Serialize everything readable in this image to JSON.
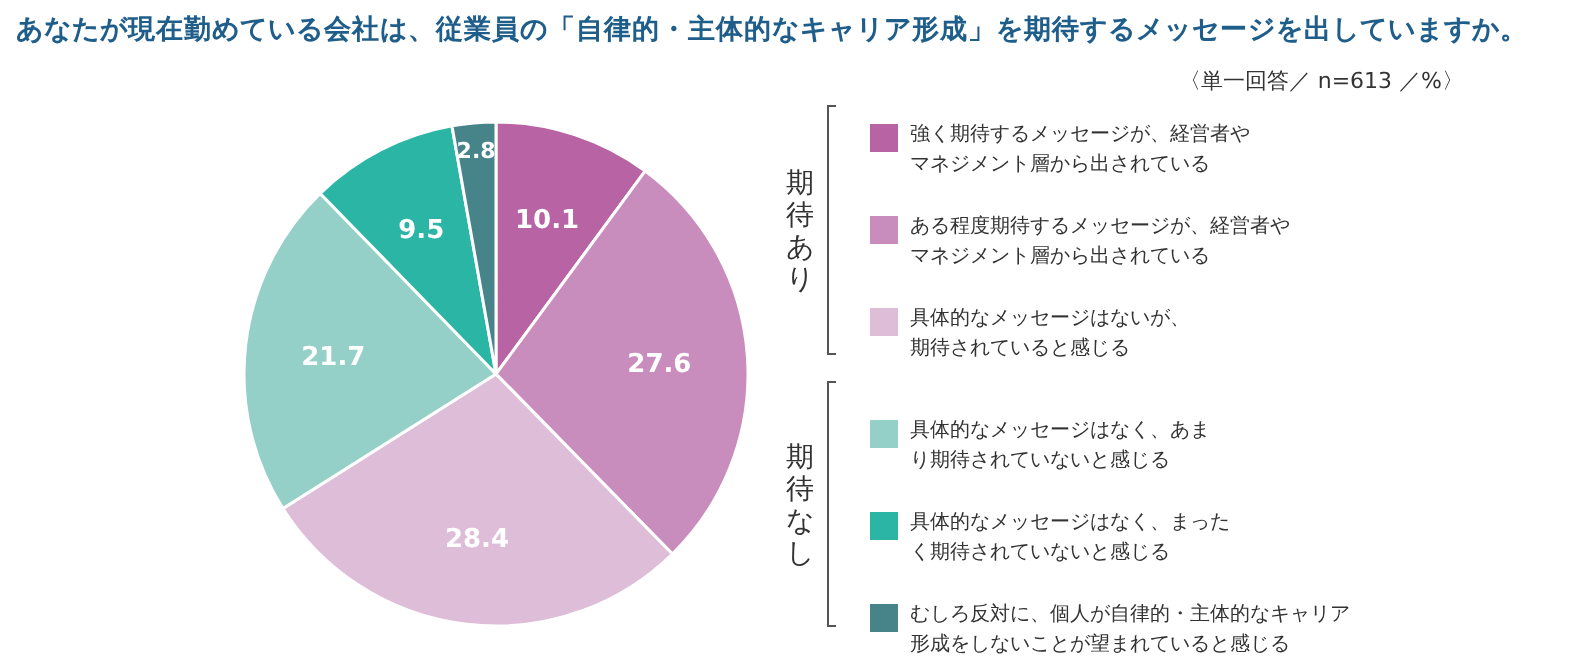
{
  "chart_data": {
    "type": "pie",
    "title": "あなたが現在勤めている会社は、従業員の「自律的・主体的なキャリア形成」を期待するメッセージを出していますか。",
    "subtitle": "〈単一回答／ n=613 ／%〉",
    "categories": [
      "強く期待するメッセージが、経営者やマネジメント層から出されている",
      "ある程度期待するメッセージが、経営者やマネジメント層から出されている",
      "具体的なメッセージはないが、期待されていると感じる",
      "具体的なメッセージはなく、あまり期待されていないと感じる",
      "具体的なメッセージはなく、まったく期待されていないと感じる",
      "むしろ反対に、個人が自律的・主体的なキャリア形成をしないことが望まれていると感じる"
    ],
    "values": [
      10.1,
      27.6,
      28.4,
      21.7,
      9.5,
      2.8
    ],
    "colors": [
      "#b863a3",
      "#c98dbd",
      "#ddbdd8",
      "#94d0c7",
      "#2bb5a5",
      "#46848a"
    ],
    "data_labels": true,
    "legend": "right",
    "annotations": [
      "期待あり",
      "期待なし"
    ]
  }
}
